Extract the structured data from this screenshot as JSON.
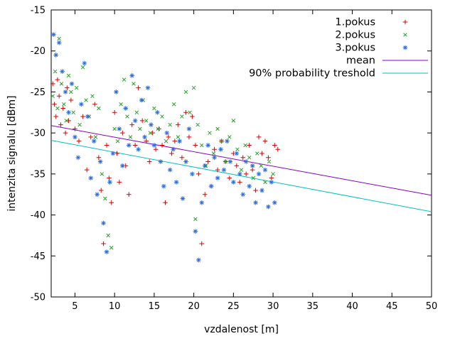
{
  "chart_data": {
    "type": "scatter",
    "title": "",
    "xlabel": "vzdalenost [m]",
    "ylabel": "intenzita signalu [dBm]",
    "xlim": [
      2,
      50
    ],
    "ylim": [
      -50,
      -15
    ],
    "xticks": [
      5,
      10,
      15,
      20,
      25,
      30,
      35,
      40,
      45,
      50
    ],
    "yticks": [
      -50,
      -45,
      -40,
      -35,
      -30,
      -25,
      -20,
      -15
    ],
    "grid": false,
    "legend_position": "top-right",
    "series": [
      {
        "name": "1.pokus",
        "marker": "plus",
        "color": "#dd0000",
        "points": [
          [
            2.2,
            -24.0
          ],
          [
            2.4,
            -26.5
          ],
          [
            2.6,
            -28.0
          ],
          [
            2.8,
            -23.5
          ],
          [
            3.0,
            -25.5
          ],
          [
            3.2,
            -29.0
          ],
          [
            3.5,
            -27.0
          ],
          [
            3.8,
            -30.0
          ],
          [
            4.0,
            -24.5
          ],
          [
            4.2,
            -28.5
          ],
          [
            4.5,
            -26.0
          ],
          [
            5.0,
            -29.5
          ],
          [
            5.5,
            -31.0
          ],
          [
            6.0,
            -28.0
          ],
          [
            6.5,
            -34.5
          ],
          [
            7.0,
            -30.5
          ],
          [
            7.5,
            -26.5
          ],
          [
            8.0,
            -33.0
          ],
          [
            8.3,
            -37.0
          ],
          [
            8.6,
            -43.5
          ],
          [
            9.0,
            -31.5
          ],
          [
            9.3,
            -35.5
          ],
          [
            9.6,
            -38.5
          ],
          [
            10.0,
            -27.5
          ],
          [
            10.3,
            -32.5
          ],
          [
            10.6,
            -36.0
          ],
          [
            11.0,
            -30.0
          ],
          [
            11.4,
            -34.0
          ],
          [
            11.8,
            -37.5
          ],
          [
            12.2,
            -29.0
          ],
          [
            12.6,
            -31.5
          ],
          [
            13.0,
            -24.5
          ],
          [
            13.5,
            -28.5
          ],
          [
            14.0,
            -31.0
          ],
          [
            14.4,
            -33.5
          ],
          [
            14.8,
            -30.0
          ],
          [
            15.2,
            -32.0
          ],
          [
            15.6,
            -29.5
          ],
          [
            16.0,
            -31.5
          ],
          [
            16.4,
            -38.5
          ],
          [
            16.8,
            -30.5
          ],
          [
            17.2,
            -32.5
          ],
          [
            17.6,
            -31.0
          ],
          [
            18.0,
            -29.0
          ],
          [
            18.5,
            -33.0
          ],
          [
            19.0,
            -27.5
          ],
          [
            19.4,
            -30.5
          ],
          [
            19.8,
            -28.0
          ],
          [
            20.2,
            -31.5
          ],
          [
            20.6,
            -35.0
          ],
          [
            21.0,
            -43.5
          ],
          [
            21.4,
            -37.5
          ],
          [
            21.8,
            -33.5
          ],
          [
            22.2,
            -36.5
          ],
          [
            22.6,
            -32.0
          ],
          [
            23.0,
            -34.5
          ],
          [
            23.5,
            -31.0
          ],
          [
            24.0,
            -33.5
          ],
          [
            24.5,
            -35.5
          ],
          [
            25.0,
            -32.5
          ],
          [
            25.4,
            -34.0
          ],
          [
            25.8,
            -36.0
          ],
          [
            26.2,
            -33.0
          ],
          [
            26.6,
            -35.0
          ],
          [
            27.0,
            -31.5
          ],
          [
            27.4,
            -34.5
          ],
          [
            27.8,
            -37.0
          ],
          [
            28.2,
            -30.5
          ],
          [
            28.6,
            -32.5
          ],
          [
            29.0,
            -31.0
          ],
          [
            29.4,
            -33.0
          ],
          [
            29.8,
            -35.5
          ],
          [
            30.2,
            -31.5
          ],
          [
            30.6,
            -32.0
          ]
        ]
      },
      {
        "name": "2.pokus",
        "marker": "cross",
        "color": "#27a327",
        "points": [
          [
            2.2,
            -25.5
          ],
          [
            2.5,
            -22.5
          ],
          [
            2.8,
            -27.0
          ],
          [
            3.0,
            -18.5
          ],
          [
            3.3,
            -24.0
          ],
          [
            3.6,
            -26.5
          ],
          [
            3.9,
            -28.5
          ],
          [
            4.2,
            -23.0
          ],
          [
            4.5,
            -25.0
          ],
          [
            4.8,
            -27.5
          ],
          [
            5.2,
            -24.5
          ],
          [
            5.6,
            -29.0
          ],
          [
            6.0,
            -22.0
          ],
          [
            6.4,
            -26.0
          ],
          [
            6.8,
            -28.0
          ],
          [
            7.2,
            -25.5
          ],
          [
            7.6,
            -30.5
          ],
          [
            8.0,
            -27.0
          ],
          [
            8.4,
            -35.0
          ],
          [
            8.8,
            -38.0
          ],
          [
            9.2,
            -42.5
          ],
          [
            9.6,
            -44.0
          ],
          [
            10.0,
            -29.5
          ],
          [
            10.4,
            -31.0
          ],
          [
            10.8,
            -26.5
          ],
          [
            11.2,
            -23.5
          ],
          [
            11.6,
            -28.0
          ],
          [
            12.0,
            -30.5
          ],
          [
            12.4,
            -24.0
          ],
          [
            12.8,
            -27.5
          ],
          [
            13.2,
            -29.5
          ],
          [
            13.6,
            -26.0
          ],
          [
            14.0,
            -28.5
          ],
          [
            14.5,
            -30.0
          ],
          [
            15.0,
            -27.0
          ],
          [
            15.5,
            -29.5
          ],
          [
            16.0,
            -28.0
          ],
          [
            16.5,
            -31.0
          ],
          [
            17.0,
            -29.0
          ],
          [
            17.5,
            -26.5
          ],
          [
            18.0,
            -30.5
          ],
          [
            18.5,
            -28.0
          ],
          [
            19.0,
            -25.0
          ],
          [
            19.5,
            -27.5
          ],
          [
            20.0,
            -24.5
          ],
          [
            20.2,
            -40.5
          ],
          [
            20.5,
            -29.0
          ],
          [
            21.0,
            -31.5
          ],
          [
            21.5,
            -34.0
          ],
          [
            22.0,
            -30.0
          ],
          [
            22.5,
            -32.5
          ],
          [
            23.0,
            -29.5
          ],
          [
            23.5,
            -31.0
          ],
          [
            24.0,
            -33.5
          ],
          [
            24.5,
            -30.5
          ],
          [
            25.0,
            -28.5
          ],
          [
            25.5,
            -32.0
          ],
          [
            26.0,
            -34.5
          ],
          [
            26.5,
            -31.5
          ],
          [
            27.0,
            -33.0
          ],
          [
            27.5,
            -35.5
          ],
          [
            28.0,
            -32.5
          ],
          [
            28.5,
            -34.0
          ],
          [
            29.0,
            -36.0
          ],
          [
            29.5,
            -33.5
          ],
          [
            30.0,
            -35.0
          ]
        ]
      },
      {
        "name": "3.pokus",
        "marker": "asterisk",
        "color": "#2f6fde",
        "points": [
          [
            2.3,
            -18.0
          ],
          [
            2.6,
            -20.5
          ],
          [
            3.0,
            -19.0
          ],
          [
            3.4,
            -22.5
          ],
          [
            3.8,
            -25.0
          ],
          [
            4.2,
            -27.5
          ],
          [
            4.6,
            -24.0
          ],
          [
            5.0,
            -30.5
          ],
          [
            5.4,
            -33.0
          ],
          [
            5.8,
            -26.5
          ],
          [
            6.2,
            -21.5
          ],
          [
            6.6,
            -28.0
          ],
          [
            7.0,
            -35.5
          ],
          [
            7.4,
            -31.0
          ],
          [
            7.8,
            -37.5
          ],
          [
            8.2,
            -33.5
          ],
          [
            8.6,
            -41.0
          ],
          [
            9.0,
            -44.5
          ],
          [
            9.4,
            -36.0
          ],
          [
            9.8,
            -32.5
          ],
          [
            10.2,
            -25.0
          ],
          [
            10.6,
            -29.5
          ],
          [
            11.0,
            -34.0
          ],
          [
            11.4,
            -27.0
          ],
          [
            11.8,
            -31.5
          ],
          [
            12.2,
            -23.0
          ],
          [
            12.6,
            -28.5
          ],
          [
            13.0,
            -32.0
          ],
          [
            13.4,
            -26.0
          ],
          [
            13.8,
            -30.5
          ],
          [
            14.2,
            -24.5
          ],
          [
            14.6,
            -29.0
          ],
          [
            15.0,
            -31.5
          ],
          [
            15.4,
            -27.5
          ],
          [
            15.8,
            -33.5
          ],
          [
            16.2,
            -36.5
          ],
          [
            16.6,
            -30.0
          ],
          [
            17.0,
            -34.5
          ],
          [
            17.4,
            -32.0
          ],
          [
            17.8,
            -36.0
          ],
          [
            18.2,
            -31.0
          ],
          [
            18.6,
            -38.0
          ],
          [
            19.0,
            -33.5
          ],
          [
            19.4,
            -29.5
          ],
          [
            19.8,
            -35.0
          ],
          [
            20.2,
            -42.0
          ],
          [
            20.6,
            -45.5
          ],
          [
            21.0,
            -38.5
          ],
          [
            21.4,
            -34.0
          ],
          [
            21.8,
            -31.5
          ],
          [
            22.2,
            -36.5
          ],
          [
            22.6,
            -33.0
          ],
          [
            23.0,
            -35.5
          ],
          [
            23.4,
            -32.0
          ],
          [
            23.8,
            -34.5
          ],
          [
            24.2,
            -31.0
          ],
          [
            24.6,
            -33.5
          ],
          [
            25.0,
            -36.0
          ],
          [
            25.4,
            -32.5
          ],
          [
            25.8,
            -35.0
          ],
          [
            26.2,
            -37.5
          ],
          [
            26.6,
            -33.5
          ],
          [
            27.0,
            -36.5
          ],
          [
            27.4,
            -34.0
          ],
          [
            27.8,
            -38.5
          ],
          [
            28.2,
            -35.0
          ],
          [
            28.6,
            -37.0
          ],
          [
            29.0,
            -34.5
          ],
          [
            29.4,
            -39.0
          ],
          [
            29.8,
            -36.0
          ],
          [
            30.2,
            -38.5
          ]
        ]
      }
    ],
    "lines": [
      {
        "name": "mean",
        "color": "#8800c8",
        "points": [
          [
            2,
            -29.1
          ],
          [
            50,
            -37.6
          ]
        ]
      },
      {
        "name": "90% probability treshold",
        "color": "#00c2c2",
        "points": [
          [
            2,
            -30.9
          ],
          [
            50,
            -39.6
          ]
        ]
      }
    ]
  }
}
